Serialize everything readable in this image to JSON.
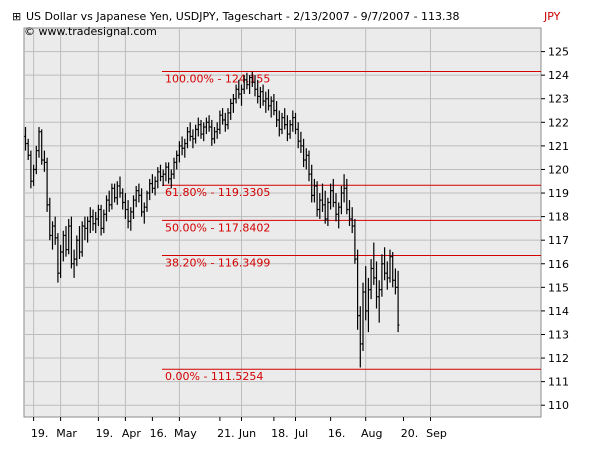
{
  "chart_data": {
    "type": "ohlc",
    "title": "US Dollar vs Japanese Yen, USDJPY, Tageschart - 2/13/2007 - 9/7/2007 - 113.38",
    "copyright": "© www.tradesignal.com",
    "currency_label": "JPY",
    "ylim": [
      109.5,
      126.0
    ],
    "grid": true,
    "y_ticks": [
      110,
      111,
      112,
      113,
      114,
      115,
      116,
      117,
      118,
      119,
      120,
      121,
      122,
      123,
      124,
      125
    ],
    "x_ticks": [
      {
        "label": "19.",
        "index": 3
      },
      {
        "label": "Mar",
        "index": 13
      },
      {
        "label": "19.",
        "index": 27
      },
      {
        "label": "Apr",
        "index": 37
      },
      {
        "label": "16.",
        "index": 47
      },
      {
        "label": "May",
        "index": 57
      },
      {
        "label": "21.",
        "index": 72
      },
      {
        "label": "Jun",
        "index": 80
      },
      {
        "label": "18.",
        "index": 92
      },
      {
        "label": "Jul",
        "index": 100
      },
      {
        "label": "16.",
        "index": 113
      },
      {
        "label": "Aug",
        "index": 126
      },
      {
        "label": "20.",
        "index": 140
      },
      {
        "label": "Sep",
        "index": 150
      }
    ],
    "levels": [
      {
        "label": "100.00% - 124.155",
        "value": 124.155
      },
      {
        "label": "61.80% - 119.3305",
        "value": 119.3305
      },
      {
        "label": "50.00% - 117.8402",
        "value": 117.8402
      },
      {
        "label": "38.20% - 116.3499",
        "value": 116.3499
      },
      {
        "label": "0.00% - 111.5254",
        "value": 111.5254
      }
    ],
    "series": [
      {
        "bars": [
          [
            121.4,
            121.8,
            120.8,
            121.1
          ],
          [
            121.1,
            121.3,
            120.4,
            120.6
          ],
          [
            120.6,
            120.8,
            119.2,
            119.5
          ],
          [
            119.5,
            120.2,
            119.3,
            120.0
          ],
          [
            120.0,
            121.0,
            119.8,
            120.8
          ],
          [
            120.8,
            121.8,
            120.5,
            121.6
          ],
          [
            121.6,
            121.7,
            120.2,
            120.4
          ],
          [
            120.4,
            120.8,
            119.9,
            120.3
          ],
          [
            120.3,
            120.5,
            118.2,
            118.5
          ],
          [
            118.5,
            118.8,
            117.0,
            117.2
          ],
          [
            117.2,
            117.8,
            116.6,
            117.6
          ],
          [
            117.6,
            118.0,
            116.8,
            117.1
          ],
          [
            117.1,
            117.3,
            115.2,
            115.6
          ],
          [
            115.6,
            116.8,
            115.4,
            116.5
          ],
          [
            116.5,
            117.4,
            116.1,
            117.2
          ],
          [
            117.2,
            117.6,
            116.3,
            116.6
          ],
          [
            116.6,
            117.9,
            116.4,
            117.6
          ],
          [
            117.6,
            118.0,
            115.8,
            116.0
          ],
          [
            116.0,
            116.6,
            115.4,
            116.2
          ],
          [
            116.2,
            117.2,
            115.9,
            117.0
          ],
          [
            117.0,
            117.6,
            116.2,
            116.5
          ],
          [
            116.5,
            117.8,
            116.3,
            117.6
          ],
          [
            117.6,
            118.0,
            117.0,
            117.5
          ],
          [
            117.5,
            118.0,
            116.9,
            117.8
          ],
          [
            117.8,
            118.4,
            117.3,
            118.0
          ],
          [
            118.0,
            118.3,
            117.4,
            117.7
          ],
          [
            117.7,
            118.2,
            117.3,
            117.9
          ],
          [
            117.9,
            118.5,
            117.6,
            118.3
          ],
          [
            118.3,
            118.5,
            117.2,
            117.5
          ],
          [
            117.5,
            118.3,
            117.3,
            118.1
          ],
          [
            118.1,
            118.9,
            117.8,
            118.7
          ],
          [
            118.7,
            119.1,
            118.2,
            118.5
          ],
          [
            118.5,
            119.4,
            118.3,
            119.2
          ],
          [
            119.2,
            119.4,
            118.6,
            118.8
          ],
          [
            118.8,
            119.5,
            118.5,
            119.3
          ],
          [
            119.3,
            119.7,
            118.8,
            119.0
          ],
          [
            119.0,
            119.2,
            118.3,
            118.6
          ],
          [
            118.6,
            119.0,
            117.9,
            118.3
          ],
          [
            118.3,
            118.7,
            117.5,
            117.8
          ],
          [
            117.8,
            118.4,
            117.4,
            118.2
          ],
          [
            118.2,
            118.9,
            117.9,
            118.7
          ],
          [
            118.7,
            119.3,
            118.4,
            119.1
          ],
          [
            119.1,
            119.4,
            118.6,
            118.9
          ],
          [
            118.9,
            119.2,
            118.0,
            118.2
          ],
          [
            118.2,
            118.6,
            117.7,
            118.4
          ],
          [
            118.4,
            119.1,
            118.2,
            119.0
          ],
          [
            119.0,
            119.6,
            118.7,
            119.4
          ],
          [
            119.4,
            119.8,
            119.0,
            119.2
          ],
          [
            119.2,
            119.7,
            118.9,
            119.5
          ],
          [
            119.5,
            120.1,
            119.2,
            119.9
          ],
          [
            119.9,
            120.2,
            119.5,
            119.7
          ],
          [
            119.7,
            120.0,
            119.3,
            119.8
          ],
          [
            119.8,
            120.3,
            119.5,
            120.1
          ],
          [
            120.1,
            120.3,
            119.4,
            119.6
          ],
          [
            119.6,
            120.0,
            119.2,
            119.8
          ],
          [
            119.8,
            120.5,
            119.6,
            120.3
          ],
          [
            120.3,
            120.8,
            120.0,
            120.6
          ],
          [
            120.6,
            121.2,
            120.3,
            121.0
          ],
          [
            121.0,
            121.4,
            120.6,
            120.9
          ],
          [
            120.9,
            121.3,
            120.5,
            121.1
          ],
          [
            121.1,
            121.8,
            120.9,
            121.6
          ],
          [
            121.6,
            122.0,
            121.2,
            121.4
          ],
          [
            121.4,
            121.7,
            120.9,
            121.3
          ],
          [
            121.3,
            121.9,
            121.1,
            121.7
          ],
          [
            121.7,
            122.2,
            121.4,
            121.9
          ],
          [
            121.9,
            122.1,
            121.3,
            121.5
          ],
          [
            121.5,
            122.0,
            121.2,
            121.8
          ],
          [
            121.8,
            122.2,
            121.5,
            122.0
          ],
          [
            122.0,
            122.3,
            121.6,
            121.8
          ],
          [
            121.8,
            122.1,
            121.0,
            121.3
          ],
          [
            121.3,
            121.8,
            121.1,
            121.6
          ],
          [
            121.6,
            122.0,
            121.3,
            121.7
          ],
          [
            121.7,
            122.5,
            121.5,
            122.3
          ],
          [
            122.3,
            122.6,
            121.9,
            122.1
          ],
          [
            122.1,
            122.4,
            121.6,
            121.9
          ],
          [
            121.9,
            122.6,
            121.7,
            122.4
          ],
          [
            122.4,
            123.0,
            122.1,
            122.8
          ],
          [
            122.8,
            123.2,
            122.4,
            123.0
          ],
          [
            123.0,
            123.6,
            122.8,
            123.4
          ],
          [
            123.4,
            123.8,
            123.0,
            123.2
          ],
          [
            123.2,
            123.6,
            122.7,
            123.4
          ],
          [
            123.4,
            124.0,
            123.2,
            123.8
          ],
          [
            123.8,
            124.1,
            123.4,
            123.6
          ],
          [
            123.6,
            124.0,
            123.2,
            123.9
          ],
          [
            123.9,
            124.15,
            123.5,
            123.7
          ],
          [
            123.7,
            124.0,
            123.1,
            123.4
          ],
          [
            123.4,
            123.8,
            122.8,
            123.1
          ],
          [
            123.1,
            123.5,
            122.6,
            123.3
          ],
          [
            123.3,
            123.6,
            122.7,
            122.9
          ],
          [
            122.9,
            123.3,
            122.4,
            123.0
          ],
          [
            123.0,
            123.4,
            122.5,
            122.7
          ],
          [
            122.7,
            123.1,
            122.2,
            122.9
          ],
          [
            122.9,
            123.2,
            122.3,
            122.5
          ],
          [
            122.5,
            122.9,
            121.8,
            122.1
          ],
          [
            122.1,
            122.5,
            121.4,
            121.7
          ],
          [
            121.7,
            122.4,
            121.5,
            122.2
          ],
          [
            122.2,
            122.6,
            121.7,
            121.9
          ],
          [
            121.9,
            122.3,
            121.2,
            121.5
          ],
          [
            121.5,
            122.1,
            121.3,
            121.9
          ],
          [
            121.9,
            122.5,
            121.6,
            122.2
          ],
          [
            122.2,
            122.4,
            121.5,
            121.7
          ],
          [
            121.7,
            122.0,
            120.9,
            121.2
          ],
          [
            121.2,
            121.6,
            120.7,
            121.0
          ],
          [
            121.0,
            121.3,
            120.1,
            120.4
          ],
          [
            120.4,
            120.9,
            120.0,
            120.6
          ],
          [
            120.6,
            120.8,
            119.5,
            119.8
          ],
          [
            119.8,
            120.2,
            118.6,
            118.9
          ],
          [
            118.9,
            119.6,
            118.6,
            119.3
          ],
          [
            119.3,
            119.5,
            118.0,
            118.3
          ],
          [
            118.3,
            119.0,
            117.9,
            118.7
          ],
          [
            118.7,
            119.4,
            118.2,
            118.5
          ],
          [
            118.5,
            119.1,
            117.7,
            117.9
          ],
          [
            117.9,
            118.8,
            117.6,
            118.6
          ],
          [
            118.6,
            119.4,
            118.3,
            119.1
          ],
          [
            119.1,
            119.6,
            118.4,
            118.6
          ],
          [
            118.6,
            119.0,
            117.8,
            118.1
          ],
          [
            118.1,
            118.6,
            117.5,
            118.4
          ],
          [
            118.4,
            119.3,
            118.1,
            119.0
          ],
          [
            119.0,
            119.8,
            118.6,
            119.2
          ],
          [
            119.2,
            119.6,
            118.1,
            118.3
          ],
          [
            118.3,
            118.7,
            117.6,
            117.9
          ],
          [
            117.9,
            118.4,
            117.3,
            117.6
          ],
          [
            117.6,
            117.9,
            116.0,
            116.2
          ],
          [
            116.2,
            116.6,
            113.2,
            113.8
          ],
          [
            113.8,
            114.2,
            111.6,
            112.6
          ],
          [
            112.6,
            115.2,
            112.3,
            114.8
          ],
          [
            114.8,
            115.9,
            113.6,
            114.0
          ],
          [
            114.0,
            115.4,
            113.1,
            114.9
          ],
          [
            114.9,
            116.2,
            114.5,
            115.8
          ],
          [
            115.8,
            116.9,
            115.1,
            115.4
          ],
          [
            115.4,
            116.1,
            114.1,
            114.6
          ],
          [
            114.6,
            115.3,
            113.5,
            114.9
          ],
          [
            114.9,
            116.4,
            114.6,
            116.0
          ],
          [
            116.0,
            116.7,
            115.3,
            115.6
          ],
          [
            115.6,
            116.1,
            114.9,
            115.4
          ],
          [
            115.4,
            116.6,
            115.2,
            116.3
          ],
          [
            116.3,
            116.5,
            115.0,
            115.3
          ],
          [
            115.3,
            115.8,
            114.7,
            115.0
          ],
          [
            115.0,
            115.7,
            113.1,
            113.4
          ]
        ]
      }
    ]
  }
}
